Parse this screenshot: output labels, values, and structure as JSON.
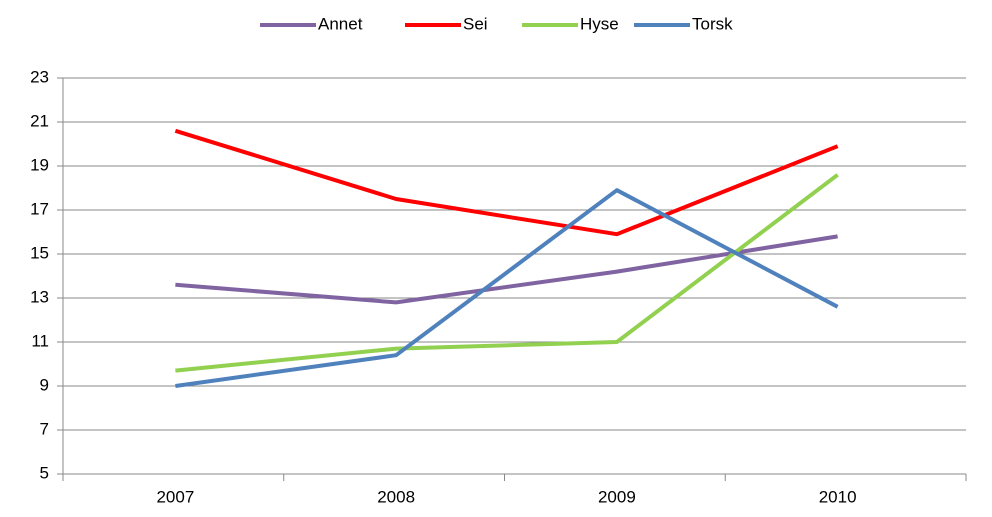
{
  "chart_data": {
    "type": "line",
    "categories": [
      "2007",
      "2008",
      "2009",
      "2010"
    ],
    "series": [
      {
        "name": "Annet",
        "color": "#8064a2",
        "values": [
          13.6,
          12.8,
          14.2,
          15.8
        ]
      },
      {
        "name": "Sei",
        "color": "#ff0000",
        "values": [
          20.6,
          17.5,
          15.9,
          19.9
        ]
      },
      {
        "name": "Hyse",
        "color": "#92d050",
        "values": [
          9.7,
          10.7,
          11.0,
          18.6
        ]
      },
      {
        "name": "Torsk",
        "color": "#4f81bd",
        "values": [
          9.0,
          10.4,
          17.9,
          12.6
        ]
      }
    ],
    "ylim": [
      5,
      23
    ],
    "yticks": [
      5,
      7,
      9,
      11,
      13,
      15,
      17,
      19,
      21,
      23
    ],
    "grid": true,
    "legend": "top"
  }
}
